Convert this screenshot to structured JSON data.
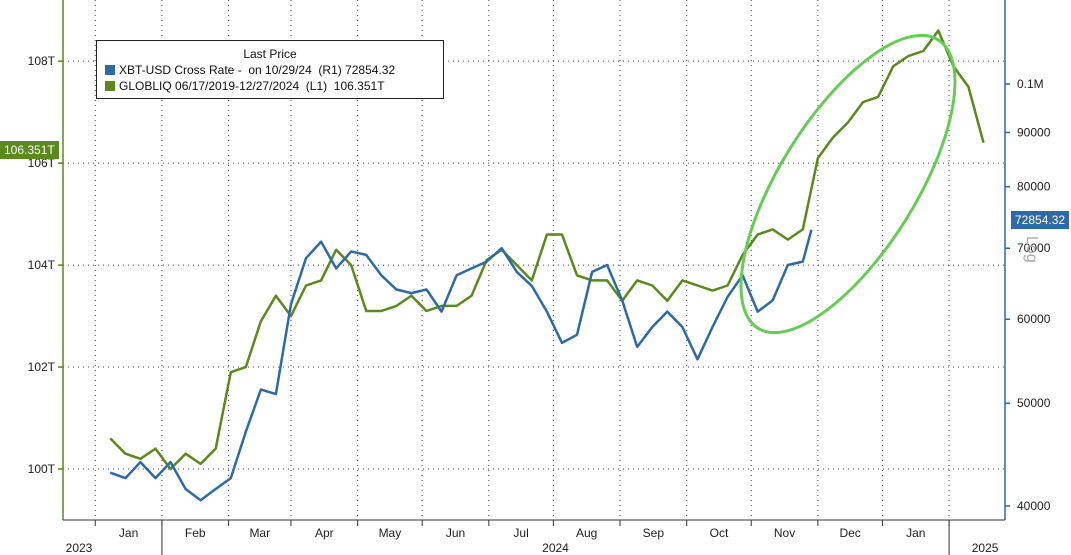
{
  "chart_data": {
    "type": "line",
    "legend": {
      "title": "Last Price",
      "entries": [
        {
          "label": "XBT-USD Cross Rate -  on 10/29/24  (R1) 72854.32",
          "color": "#2e6aa7"
        },
        {
          "label": "GLOBLIQ 06/17/2019-12/27/2024  (L1)  106.351T",
          "color": "#5a8a1e"
        }
      ]
    },
    "left_axis": {
      "ticks": [
        "100T",
        "102T",
        "104T",
        "106T",
        "108T"
      ],
      "tick_values": [
        100,
        102,
        104,
        106,
        108
      ],
      "range": [
        99.0,
        109.2
      ],
      "unit": "T"
    },
    "right_axis": {
      "ticks": [
        "40000",
        "50000",
        "60000",
        "70000",
        "80000",
        "90000",
        "0.1M"
      ],
      "tick_values": [
        40000,
        50000,
        60000,
        70000,
        80000,
        90000,
        100000
      ],
      "scale": "log",
      "range": [
        38800,
        120000
      ],
      "label": "Log"
    },
    "x_axis": {
      "months": [
        "Jan",
        "Feb",
        "Mar",
        "Apr",
        "May",
        "Jun",
        "Jul",
        "Aug",
        "Sep",
        "Oct",
        "Nov",
        "Dec",
        "Jan"
      ],
      "years": [
        "2023",
        "2024",
        "2025"
      ]
    },
    "badges": {
      "left": "106.351T",
      "right": "72854.32"
    },
    "series": [
      {
        "name": "GLOBLIQ",
        "axis": "left",
        "color": "#5a8a1e",
        "dates": [
          "2023-12-08",
          "2023-12-15",
          "2023-12-22",
          "2023-12-29",
          "2024-01-05",
          "2024-01-12",
          "2024-01-19",
          "2024-01-26",
          "2024-02-02",
          "2024-02-09",
          "2024-02-16",
          "2024-02-23",
          "2024-03-01",
          "2024-03-08",
          "2024-03-15",
          "2024-03-22",
          "2024-03-29",
          "2024-04-05",
          "2024-04-12",
          "2024-04-19",
          "2024-04-26",
          "2024-05-03",
          "2024-05-10",
          "2024-05-17",
          "2024-05-24",
          "2024-05-31",
          "2024-06-07",
          "2024-06-14",
          "2024-06-21",
          "2024-06-28",
          "2024-07-05",
          "2024-07-12",
          "2024-07-19",
          "2024-07-26",
          "2024-08-02",
          "2024-08-09",
          "2024-08-16",
          "2024-08-23",
          "2024-08-30",
          "2024-09-06",
          "2024-09-13",
          "2024-09-20",
          "2024-09-27",
          "2024-10-04",
          "2024-10-11",
          "2024-10-18",
          "2024-10-25",
          "2024-11-01",
          "2024-11-08",
          "2024-11-15",
          "2024-11-22",
          "2024-11-29",
          "2024-12-06",
          "2024-12-13",
          "2024-12-20",
          "2024-12-27",
          "2025-01-03",
          "2025-01-10",
          "2025-01-17"
        ],
        "values": [
          100.6,
          100.3,
          100.2,
          100.4,
          100.0,
          100.3,
          100.1,
          100.4,
          101.9,
          102.0,
          102.9,
          103.4,
          103.0,
          103.6,
          103.7,
          104.3,
          104.0,
          103.1,
          103.1,
          103.2,
          103.4,
          103.1,
          103.2,
          103.2,
          103.4,
          104.1,
          104.3,
          104.0,
          103.7,
          104.6,
          104.6,
          103.8,
          103.7,
          103.7,
          103.3,
          103.7,
          103.6,
          103.3,
          103.7,
          103.6,
          103.5,
          103.6,
          104.2,
          104.6,
          104.7,
          104.5,
          104.7,
          106.1,
          106.5,
          106.8,
          107.2,
          107.3,
          107.9,
          108.1,
          108.2,
          108.6,
          107.9,
          107.5,
          106.4
        ]
      },
      {
        "name": "XBT-USD Cross Rate",
        "axis": "right",
        "color": "#2e6aa7",
        "dates": [
          "2023-12-08",
          "2023-12-15",
          "2023-12-22",
          "2023-12-29",
          "2024-01-05",
          "2024-01-12",
          "2024-01-19",
          "2024-01-26",
          "2024-02-02",
          "2024-02-09",
          "2024-02-16",
          "2024-02-23",
          "2024-03-01",
          "2024-03-08",
          "2024-03-15",
          "2024-03-22",
          "2024-03-29",
          "2024-04-05",
          "2024-04-12",
          "2024-04-19",
          "2024-04-26",
          "2024-05-03",
          "2024-05-10",
          "2024-05-17",
          "2024-05-24",
          "2024-05-31",
          "2024-06-07",
          "2024-06-14",
          "2024-06-21",
          "2024-06-28",
          "2024-07-05",
          "2024-07-12",
          "2024-07-19",
          "2024-07-26",
          "2024-08-02",
          "2024-08-09",
          "2024-08-16",
          "2024-08-23",
          "2024-08-30",
          "2024-09-06",
          "2024-09-13",
          "2024-09-20",
          "2024-09-27",
          "2024-10-04",
          "2024-10-11",
          "2024-10-18",
          "2024-10-25",
          "2024-10-29"
        ],
        "values": [
          43000,
          42500,
          44000,
          42500,
          44000,
          41500,
          40500,
          41500,
          42500,
          47000,
          51500,
          51000,
          62000,
          68500,
          71000,
          67000,
          69500,
          69000,
          66000,
          64000,
          63500,
          64000,
          61000,
          66000,
          67000,
          68000,
          70000,
          66500,
          64500,
          61000,
          57000,
          58000,
          66500,
          67500,
          62500,
          56500,
          59000,
          61000,
          59000,
          55000,
          59000,
          63000,
          66000,
          61000,
          62500,
          67500,
          68000,
          72854
        ]
      }
    ]
  }
}
